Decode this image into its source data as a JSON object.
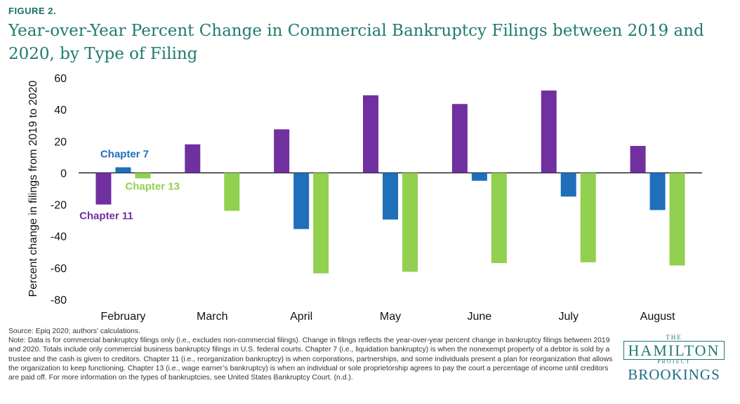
{
  "figure_label": "FIGURE 2.",
  "title": "Year-over-Year Percent Change in Commercial Bankruptcy Filings between 2019 and 2020, by Type of Filing",
  "source": "Source: Epiq 2020; authors’ calculations.",
  "note": "Note: Data is for commercial bankruptcy filings only (i.e., excludes non-commercial filings). Change in filings reflects the year-over-year percent change in bankruptcy filings between 2019 and 2020. Totals include only commercial business bankruptcy filings in U.S. federal courts. Chapter 7 (i.e., liquidation bankruptcy) is when the nonexempt property of a debtor is sold by a trustee and the cash is given to creditors. Chapter 11 (i.e., reorganization bankruptcy) is when corporations, partnerships, and some individuals present a plan for reorganization that allows the organization to keep functioning. Chapter 13 (i.e., wage earner’s bankruptcy) is when an individual or sole proprietorship agrees to pay the court a percentage of income until creditors are paid off. For more information on the types of bankruptcies, see United States Bankruptcy Court. (n.d.).",
  "logo": {
    "the": "THE",
    "hamilton": "HAMILTON",
    "project": "PROJECT",
    "brookings": "BROOKINGS"
  },
  "chart_data": {
    "type": "bar",
    "categories": [
      "February",
      "March",
      "April",
      "May",
      "June",
      "July",
      "August"
    ],
    "series": [
      {
        "name": "Chapter 11",
        "color": "#7030a0",
        "values": [
          -20,
          18,
          27.5,
          49,
          43.5,
          52,
          17
        ]
      },
      {
        "name": "Chapter 7",
        "color": "#1f6fba",
        "values": [
          3.5,
          null,
          -35.5,
          -29.5,
          -5,
          -15,
          -23.5
        ]
      },
      {
        "name": "Chapter 13",
        "color": "#92d050",
        "values": [
          -3.5,
          -24,
          -63.5,
          -62.5,
          -57,
          -56.5,
          -58.5
        ]
      }
    ],
    "ylabel": "Percent change in filings from 2019 to 2020",
    "xlabel": "",
    "ylim": [
      -80,
      60
    ],
    "yticks": [
      60,
      40,
      20,
      0,
      -20,
      -40,
      -60,
      -80
    ],
    "grid": false,
    "legend": "inline labels near February group"
  }
}
